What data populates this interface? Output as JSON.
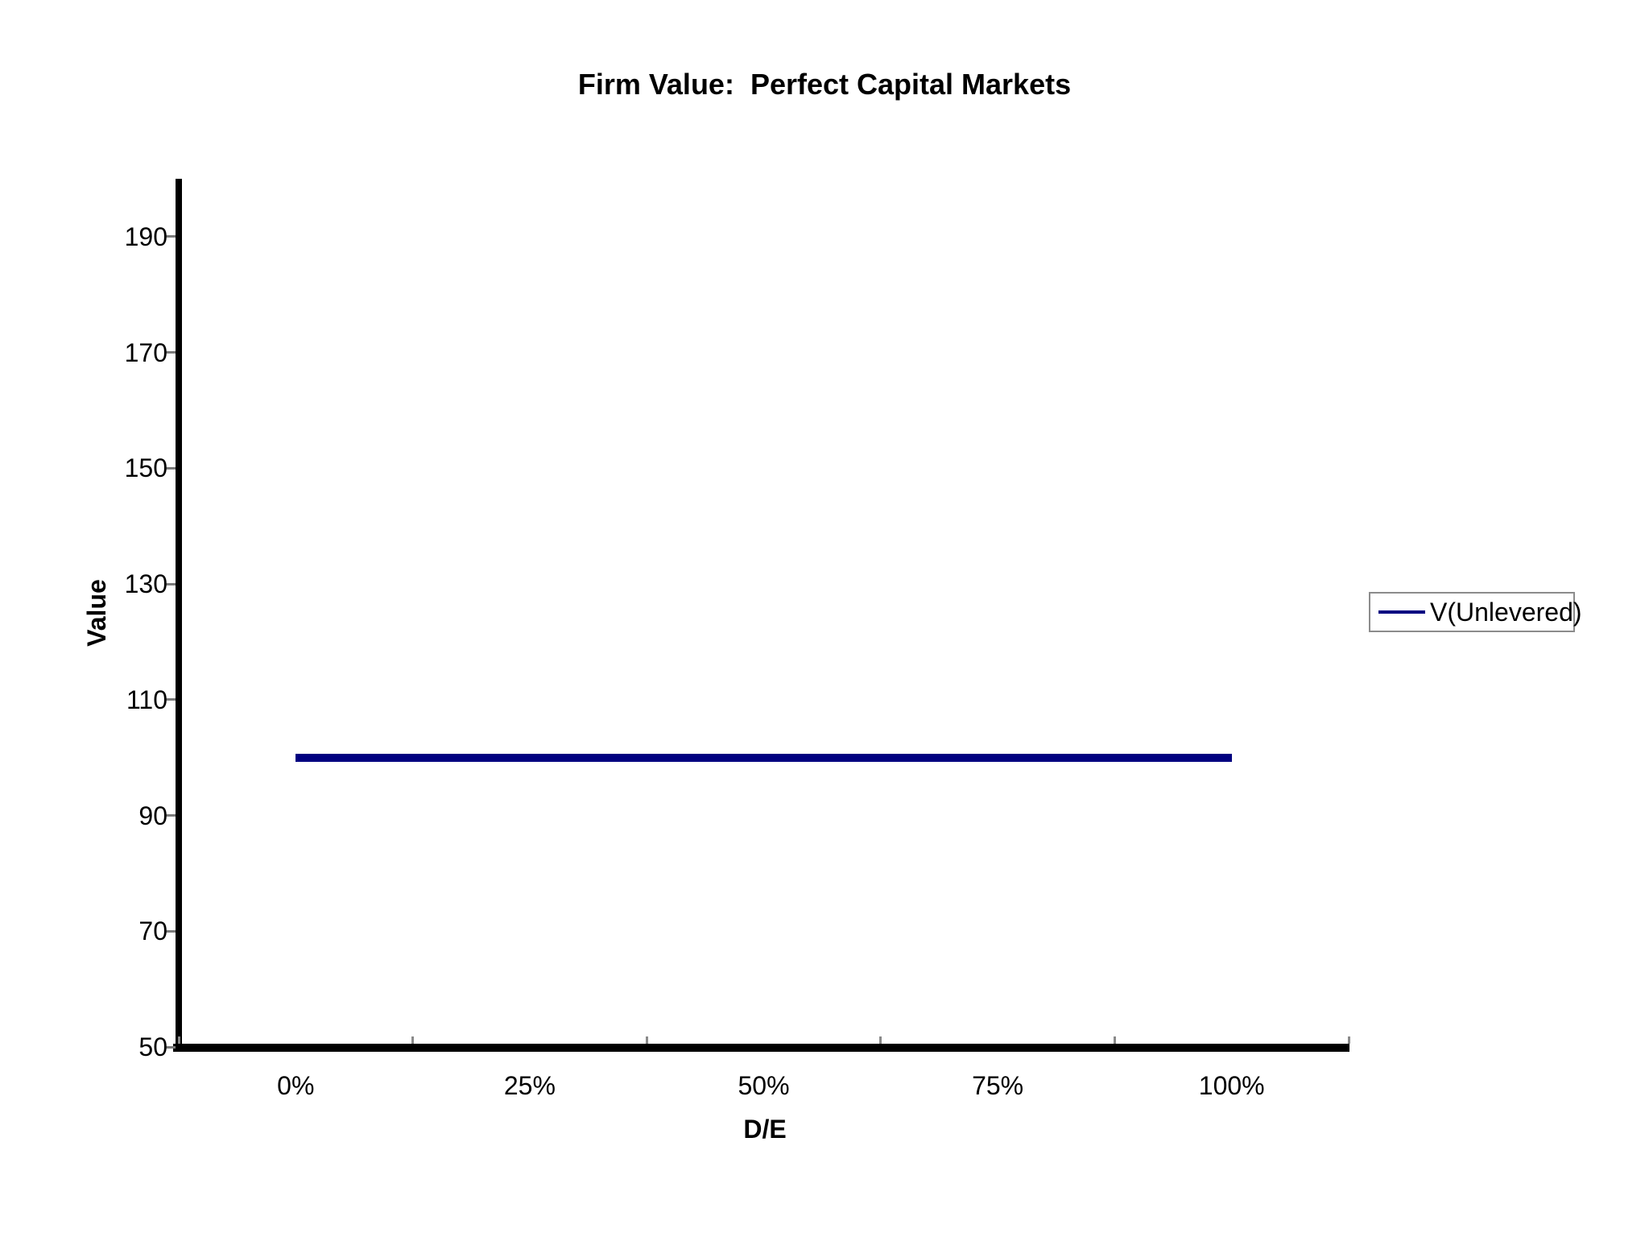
{
  "chart_data": {
    "type": "line",
    "title": "Firm Value:  Perfect Capital Markets",
    "categories": [
      "0%",
      "25%",
      "50%",
      "75%",
      "100%"
    ],
    "series": [
      {
        "name": "V(Unlevered)",
        "values": [
          100,
          100,
          100,
          100,
          100
        ],
        "color": "#000080"
      }
    ],
    "xlabel": "D/E",
    "ylabel": "Value",
    "ylim": [
      50,
      200
    ],
    "yticks": [
      190,
      170,
      150,
      130,
      110,
      90,
      70,
      50
    ],
    "grid": false,
    "legend_position": "right",
    "background": "#ffffff",
    "axis_color": "#000000",
    "tick_color": "#7a7a7a"
  }
}
